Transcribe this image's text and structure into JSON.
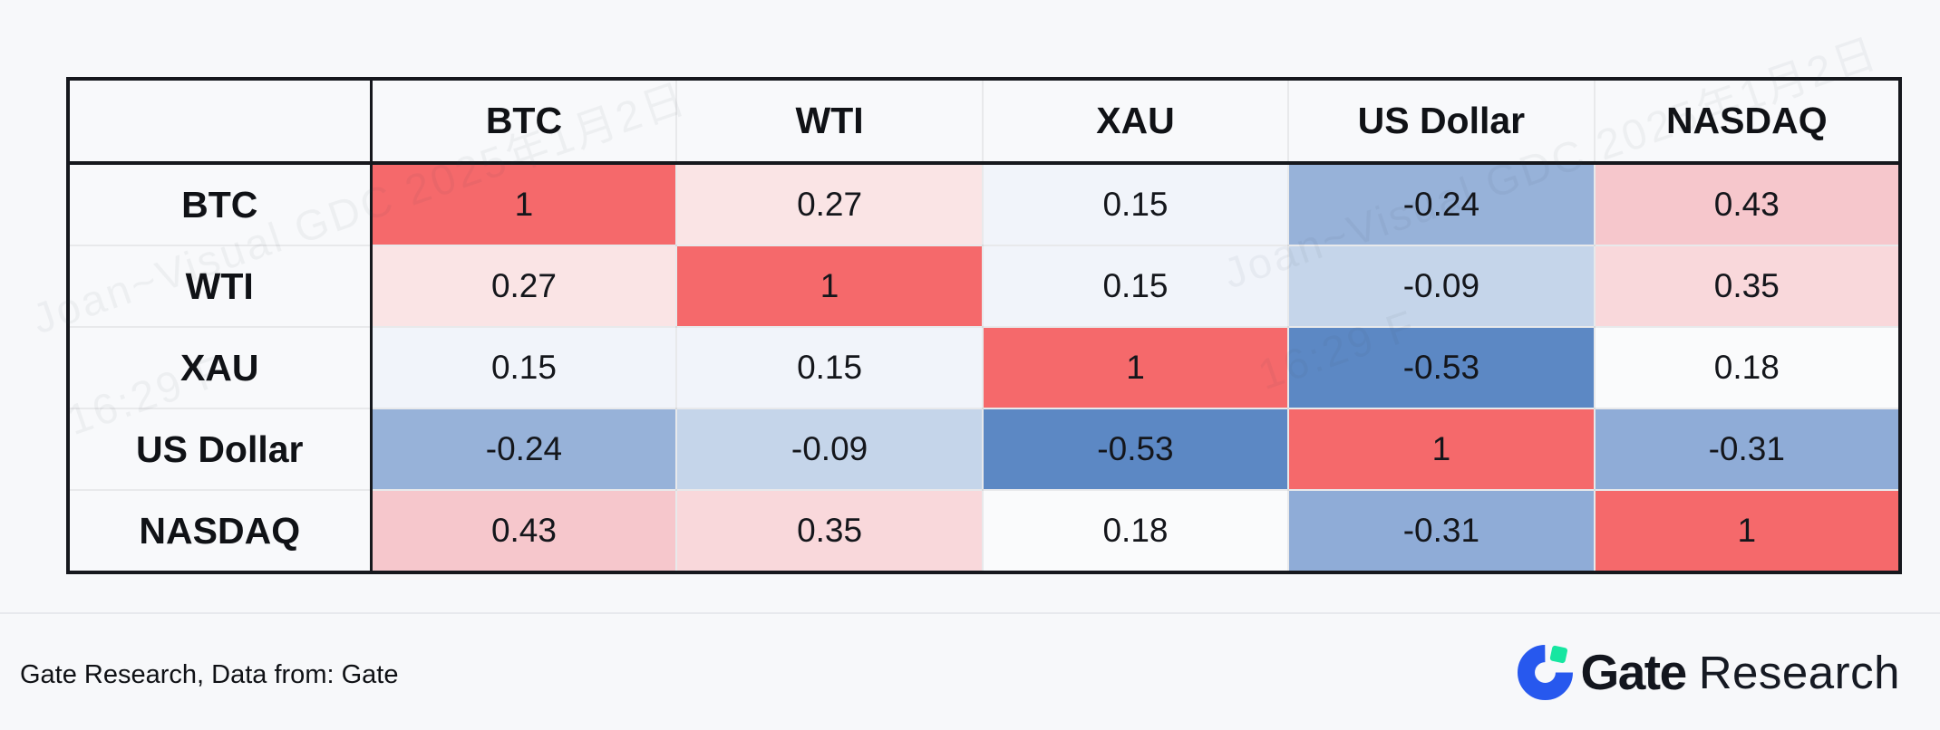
{
  "table": {
    "corner_label": "",
    "columns": [
      "BTC",
      "WTI",
      "XAU",
      "US Dollar",
      "NASDAQ"
    ],
    "rows": [
      {
        "label": "BTC",
        "values": [
          "1",
          "0.27",
          "0.15",
          "-0.24",
          "0.43"
        ]
      },
      {
        "label": "WTI",
        "values": [
          "0.27",
          "1",
          "0.15",
          "-0.09",
          "0.35"
        ]
      },
      {
        "label": "XAU",
        "values": [
          "0.15",
          "0.15",
          "1",
          "-0.53",
          "0.18"
        ]
      },
      {
        "label": "US Dollar",
        "values": [
          "-0.24",
          "-0.09",
          "-0.53",
          "1",
          "-0.31"
        ]
      },
      {
        "label": "NASDAQ",
        "values": [
          "0.43",
          "0.35",
          "0.18",
          "-0.31",
          "1"
        ]
      }
    ],
    "cell_colors": [
      [
        "#F5696B",
        "#FAE4E5",
        "#F1F4FA",
        "#97B2D9",
        "#F6C7CC"
      ],
      [
        "#FAE4E5",
        "#F5696B",
        "#F1F4FA",
        "#C5D5EA",
        "#F9D8DB"
      ],
      [
        "#F1F4FA",
        "#F1F4FA",
        "#F5696B",
        "#5C88C4",
        "#FAFBFC"
      ],
      [
        "#97B2D9",
        "#C5D5EA",
        "#5C88C4",
        "#F5696B",
        "#8FACD7"
      ],
      [
        "#F6C7CC",
        "#F9D8DB",
        "#FAFBFC",
        "#8FACD7",
        "#F5696B"
      ]
    ]
  },
  "chart_data": {
    "type": "heatmap",
    "title": "",
    "categories": [
      "BTC",
      "WTI",
      "XAU",
      "US Dollar",
      "NASDAQ"
    ],
    "matrix": [
      [
        1,
        0.27,
        0.15,
        -0.24,
        0.43
      ],
      [
        0.27,
        1,
        0.15,
        -0.09,
        0.35
      ],
      [
        0.15,
        0.15,
        1,
        -0.53,
        0.18
      ],
      [
        -0.24,
        -0.09,
        -0.53,
        1,
        -0.31
      ],
      [
        0.43,
        0.35,
        0.18,
        -0.31,
        1
      ]
    ],
    "range": [
      -1,
      1
    ],
    "colormap": "diverging red (positive) to blue (negative)",
    "positive_color": "#F5696B",
    "negative_color": "#5C88C4"
  },
  "watermark": {
    "line1": "Joan~Visual GDC 2025年1月2日",
    "line2": "16:29 F"
  },
  "footer": {
    "source_text": "Gate Research, Data from: Gate"
  },
  "logo": {
    "brand": "Gate",
    "suffix": "Research",
    "icon_blue": "#2758EE",
    "icon_green": "#17E6A1"
  }
}
